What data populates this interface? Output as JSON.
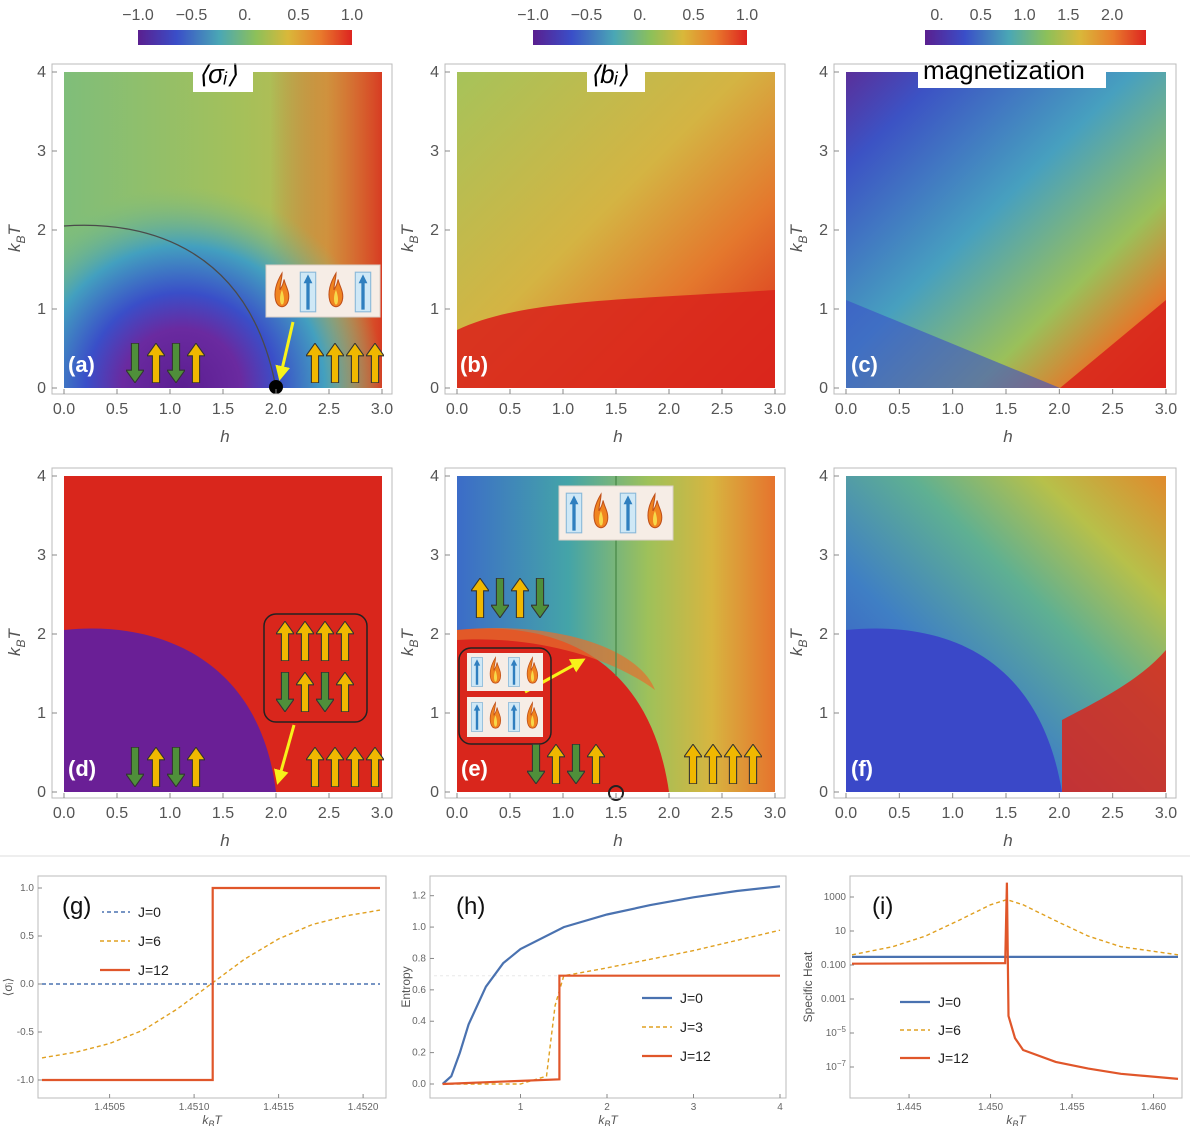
{
  "colors": {
    "purple": "#6a1f96",
    "blue": "#3a4ec8",
    "teal": "#3fa3a0",
    "green": "#7fbf5a",
    "yellow": "#d6b43a",
    "orange": "#e66f2d",
    "red": "#d9261c",
    "series_blue": "#4a72b0",
    "series_orange_dash": "#e0a020",
    "series_red": "#e0562a",
    "arrow_green": "#4f8f3a",
    "arrow_yellow": "#f0b800",
    "pointer_yellow": "#f7f21a"
  },
  "colorbars": [
    {
      "id": "cb1",
      "ticks": [
        "−1.0",
        "−0.5",
        "0.",
        "0.5",
        "1.0"
      ],
      "min": -1.0,
      "max": 1.0
    },
    {
      "id": "cb2",
      "ticks": [
        "−1.0",
        "−0.5",
        "0.",
        "0.5",
        "1.0"
      ],
      "min": -1.0,
      "max": 1.0
    },
    {
      "id": "cb3",
      "ticks": [
        "0.",
        "0.5",
        "1.0",
        "1.5",
        "2.0"
      ],
      "min": 0,
      "max": 2.4
    }
  ],
  "heatmaps": {
    "xlabel": "h",
    "ylabel_main": "k",
    "ylabel_sub": "B",
    "ylabel_tail": "T",
    "x_ticks": [
      "0.0",
      "0.5",
      "1.0",
      "1.5",
      "2.0",
      "2.5",
      "3.0"
    ],
    "y_ticks": [
      "0",
      "1",
      "2",
      "3",
      "4"
    ],
    "titles": {
      "a": "⟨σᵢ⟩",
      "b": "⟨bᵢ⟩",
      "c": "magnetization"
    },
    "labels": {
      "a": "(a)",
      "b": "(b)",
      "c": "(c)",
      "d": "(d)",
      "e": "(e)",
      "f": "(f)"
    }
  },
  "chart_data": [
    {
      "panel": "a",
      "type": "heatmap",
      "title": "⟨σᵢ⟩",
      "xlabel": "h",
      "ylabel": "k_B T",
      "xlim": [
        0,
        3
      ],
      "ylim": [
        0,
        4
      ],
      "critical_point": [
        2,
        0
      ],
      "phase_boundary_T_at_h0": 2.05
    },
    {
      "panel": "b",
      "type": "heatmap",
      "title": "⟨bᵢ⟩",
      "xlabel": "h",
      "ylabel": "k_B T",
      "xlim": [
        0,
        3
      ],
      "ylim": [
        0,
        4
      ]
    },
    {
      "panel": "c",
      "type": "heatmap",
      "title": "magnetization",
      "xlabel": "h",
      "ylabel": "k_B T",
      "xlim": [
        0,
        3
      ],
      "ylim": [
        0,
        4
      ]
    },
    {
      "panel": "d",
      "type": "heatmap",
      "xlabel": "h",
      "ylabel": "k_B T",
      "xlim": [
        0,
        3
      ],
      "ylim": [
        0,
        4
      ],
      "phase_boundary_T_at_h0": 2.05,
      "phase_boundary_h_at_T0": 2.0
    },
    {
      "panel": "e",
      "type": "heatmap",
      "xlabel": "h",
      "ylabel": "k_B T",
      "xlim": [
        0,
        3
      ],
      "ylim": [
        0,
        4
      ],
      "phase_boundary_T_at_h0": 2.05,
      "phase_boundary_h_at_T0": 2.0,
      "vertical_line_h": 1.5,
      "marked_point": [
        1.5,
        0
      ]
    },
    {
      "panel": "f",
      "type": "heatmap",
      "xlabel": "h",
      "ylabel": "k_B T",
      "xlim": [
        0,
        3
      ],
      "ylim": [
        0,
        4
      ],
      "phase_boundary_h_at_T0": 2.0
    },
    {
      "panel": "g",
      "type": "line",
      "xlabel": "k_BT",
      "ylabel": "⟨σᵢ⟩",
      "xlim": [
        1.4501,
        1.4521
      ],
      "ylim": [
        -1.0,
        1.0
      ],
      "x_ticks": [
        "1.4505",
        "1.4510",
        "1.4515",
        "1.4520"
      ],
      "y_ticks": [
        "1.0",
        "0.5",
        "0.0",
        "-0.5",
        "-1.0"
      ],
      "series": [
        {
          "name": "J=0",
          "style": "dashed",
          "x": [
            1.4501,
            1.4521
          ],
          "y": [
            0,
            0
          ]
        },
        {
          "name": "J=6",
          "style": "dashed",
          "x": [
            1.4501,
            1.4503,
            1.4505,
            1.4507,
            1.4509,
            1.4511,
            1.4513,
            1.4515,
            1.4517,
            1.4519,
            1.4521
          ],
          "y": [
            -0.77,
            -0.71,
            -0.62,
            -0.48,
            -0.26,
            0.0,
            0.26,
            0.47,
            0.62,
            0.71,
            0.77
          ]
        },
        {
          "name": "J=12",
          "style": "solid",
          "x": [
            1.4501,
            1.45111,
            1.45111,
            1.4521
          ],
          "y": [
            -1.0,
            -1.0,
            1.0,
            1.0
          ]
        }
      ]
    },
    {
      "panel": "h",
      "type": "line",
      "xlabel": "k_BT",
      "ylabel": "Entropy",
      "xlim": [
        0,
        4
      ],
      "ylim": [
        0,
        1.3
      ],
      "x_ticks": [
        "1",
        "2",
        "3",
        "4"
      ],
      "y_ticks": [
        "1.2",
        "1.0",
        "0.8",
        "0.6",
        "0.4",
        "0.2",
        "0.0"
      ],
      "series": [
        {
          "name": "J=0",
          "style": "solid",
          "x": [
            0.1,
            0.2,
            0.3,
            0.4,
            0.6,
            0.8,
            1.0,
            1.5,
            2.0,
            2.5,
            3.0,
            3.5,
            4.0
          ],
          "y": [
            0.0,
            0.05,
            0.2,
            0.38,
            0.62,
            0.77,
            0.86,
            1.0,
            1.08,
            1.14,
            1.19,
            1.23,
            1.26
          ]
        },
        {
          "name": "J=3",
          "style": "dashed",
          "x": [
            0.1,
            1.0,
            1.3,
            1.4,
            1.5,
            1.6,
            2.0,
            3.0,
            4.0
          ],
          "y": [
            0.0,
            0.0,
            0.05,
            0.5,
            0.69,
            0.7,
            0.74,
            0.85,
            0.98
          ]
        },
        {
          "name": "J=12",
          "style": "solid",
          "x": [
            0.1,
            1.45,
            1.45,
            4.0
          ],
          "y": [
            0.0,
            0.03,
            0.69,
            0.69
          ]
        }
      ]
    },
    {
      "panel": "i",
      "type": "line",
      "xlabel": "k_BT",
      "ylabel": "Specific Heat",
      "xlim": [
        1.4415,
        1.4615
      ],
      "yscale": "log",
      "ylim": [
        1e-08,
        10000.0
      ],
      "x_ticks": [
        "1.445",
        "1.450",
        "1.455",
        "1.460"
      ],
      "y_ticks": [
        "1000",
        "10",
        "0.100",
        "0.001",
        "10^-5",
        "10^-7"
      ],
      "series": [
        {
          "name": "J=0",
          "style": "solid",
          "x": [
            1.4415,
            1.4615
          ],
          "y": [
            0.3,
            0.3
          ]
        },
        {
          "name": "J=6",
          "style": "dashed",
          "x": [
            1.4415,
            1.444,
            1.446,
            1.448,
            1.45,
            1.451,
            1.452,
            1.454,
            1.456,
            1.458,
            1.4615
          ],
          "y": [
            0.4,
            1.2,
            5,
            40,
            350,
            700,
            350,
            40,
            5,
            1.2,
            0.4
          ]
        },
        {
          "name": "J=12",
          "style": "solid",
          "x": [
            1.4415,
            1.4509,
            1.451,
            1.4511,
            1.4515,
            1.452,
            1.454,
            1.456,
            1.458,
            1.4615
          ],
          "y": [
            0.12,
            0.13,
            7000,
            0.0001,
            5e-06,
            1e-06,
            2e-07,
            8e-08,
            4e-08,
            2e-08
          ]
        }
      ]
    }
  ],
  "legend": {
    "g": [
      "J=0",
      "J=6",
      "J=12"
    ],
    "h": [
      "J=0",
      "J=3",
      "J=12"
    ],
    "i": [
      "J=0",
      "J=6",
      "J=12"
    ]
  }
}
